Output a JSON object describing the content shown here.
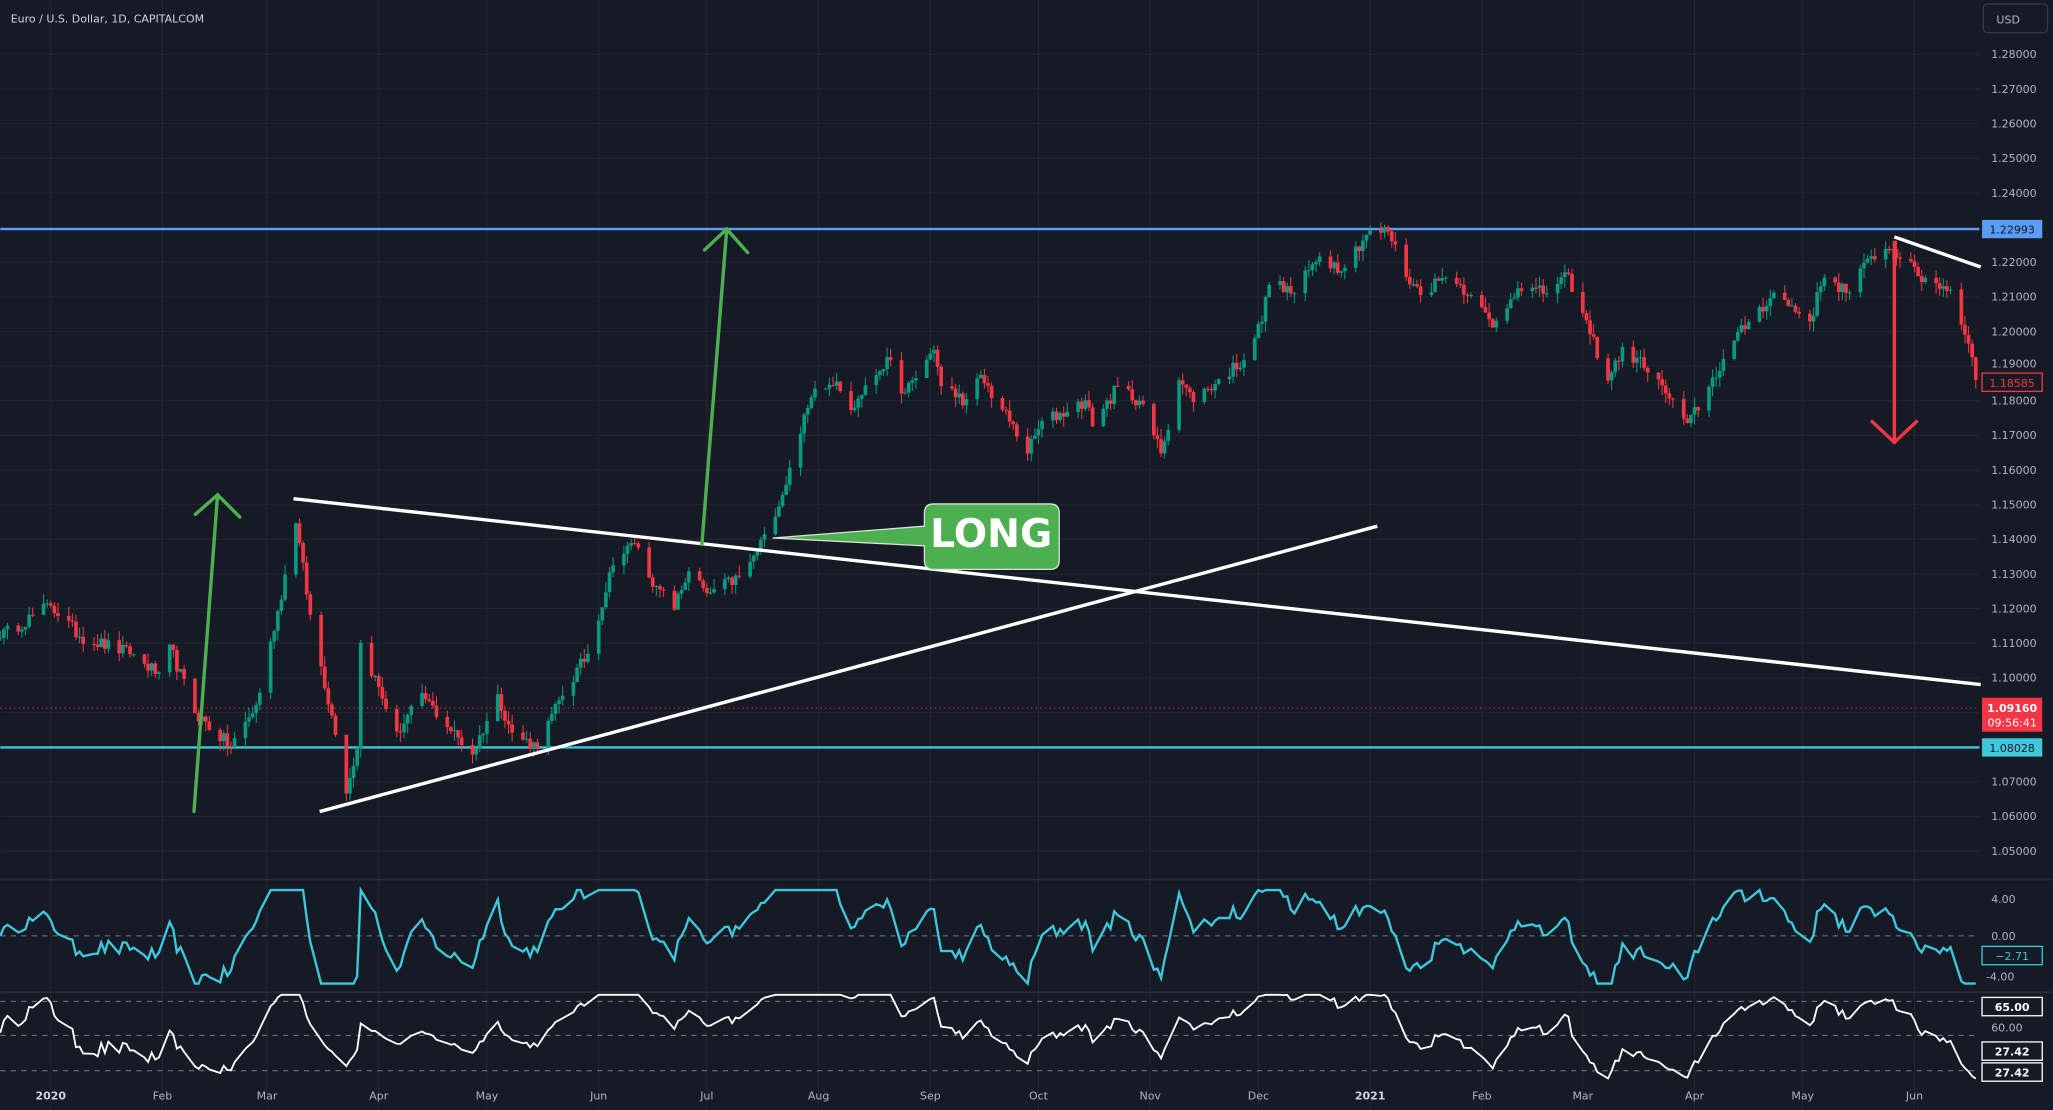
{
  "header": {
    "title": "Euro / U.S. Dollar, 1D, CAPITALCOM",
    "currency_button": "USD"
  },
  "colors": {
    "background": "#161a25",
    "grid": "#222631",
    "up": "#089981",
    "down": "#f23645",
    "resistance": "#5b9cf6",
    "support": "#3ec8dc",
    "trendline": "#ffffff",
    "arrow_up": "#4caf50",
    "arrow_down": "#f23645",
    "callout": "#4caf50",
    "oscillator1": "#3ec8dc",
    "oscillator2": "#ffffff"
  },
  "price_axis": {
    "ticks": [
      "1.28000",
      "1.27000",
      "1.26000",
      "1.25000",
      "1.24000",
      "1.22000",
      "1.21000",
      "1.20000",
      "1.19000",
      "1.18000",
      "1.17000",
      "1.16000",
      "1.15000",
      "1.14000",
      "1.13000",
      "1.12000",
      "1.11000",
      "1.10000",
      "1.07000",
      "1.06000",
      "1.05000"
    ],
    "tags": {
      "resistance": "1.22993",
      "last_close": "1.18585",
      "current_price": "1.09160",
      "countdown": "09:56:41",
      "support": "1.08028"
    }
  },
  "time_axis": {
    "labels": [
      "2020",
      "Feb",
      "Mar",
      "Apr",
      "May",
      "Jun",
      "Jul",
      "Aug",
      "Sep",
      "Oct",
      "Nov",
      "Dec",
      "2021",
      "Feb",
      "Mar",
      "Apr",
      "May",
      "Jun"
    ]
  },
  "annotations": {
    "callout_label": "LONG"
  },
  "indicator1": {
    "ticks": [
      "4.00",
      "0.00",
      "-4.00"
    ],
    "value": "−2.71"
  },
  "indicator2": {
    "ticks": [
      "65.00",
      "60.00"
    ],
    "values": [
      "27.42",
      "27.42"
    ]
  },
  "chart_data": {
    "type": "candlestick",
    "title": "Euro / U.S. Dollar, 1D, CAPITALCOM",
    "ylim": [
      1.045,
      1.285
    ],
    "xlim": [
      "2019-12-18",
      "2021-06-18"
    ],
    "grid": true,
    "horizontal_levels": [
      1.22993,
      1.08028,
      1.0916
    ],
    "approx_closes": [
      [
        "2019-12-18",
        1.112
      ],
      [
        "2020-01-01",
        1.121
      ],
      [
        "2020-01-09",
        1.112
      ],
      [
        "2020-01-23",
        1.107
      ],
      [
        "2020-01-31",
        1.101
      ],
      [
        "2020-02-03",
        1.109
      ],
      [
        "2020-02-10",
        1.09
      ],
      [
        "2020-02-20",
        1.08
      ],
      [
        "2020-02-27",
        1.092
      ],
      [
        "2020-03-03",
        1.114
      ],
      [
        "2020-03-09",
        1.145
      ],
      [
        "2020-03-13",
        1.118
      ],
      [
        "2020-03-20",
        1.084
      ],
      [
        "2020-03-23",
        1.067
      ],
      [
        "2020-03-26",
        1.08
      ],
      [
        "2020-03-27",
        1.11
      ],
      [
        "2020-04-06",
        1.084
      ],
      [
        "2020-04-13",
        1.095
      ],
      [
        "2020-04-20",
        1.086
      ],
      [
        "2020-04-27",
        1.078
      ],
      [
        "2020-05-04",
        1.095
      ],
      [
        "2020-05-08",
        1.084
      ],
      [
        "2020-05-15",
        1.08
      ],
      [
        "2020-05-22",
        1.095
      ],
      [
        "2020-05-29",
        1.107
      ],
      [
        "2020-06-05",
        1.133
      ],
      [
        "2020-06-11",
        1.139
      ],
      [
        "2020-06-17",
        1.126
      ],
      [
        "2020-06-22",
        1.12
      ],
      [
        "2020-06-26",
        1.131
      ],
      [
        "2020-07-01",
        1.124
      ],
      [
        "2020-07-10",
        1.129
      ],
      [
        "2020-07-14",
        1.135
      ],
      [
        "2020-07-17",
        1.141
      ],
      [
        "2020-07-23",
        1.156
      ],
      [
        "2020-07-27",
        1.171
      ],
      [
        "2020-07-31",
        1.184
      ],
      [
        "2020-08-06",
        1.186
      ],
      [
        "2020-08-10",
        1.177
      ],
      [
        "2020-08-14",
        1.184
      ],
      [
        "2020-08-20",
        1.192
      ],
      [
        "2020-08-25",
        1.182
      ],
      [
        "2020-09-02",
        1.195
      ],
      [
        "2020-09-04",
        1.184
      ],
      [
        "2020-09-11",
        1.18
      ],
      [
        "2020-09-15",
        1.187
      ],
      [
        "2020-09-23",
        1.174
      ],
      [
        "2020-09-28",
        1.165
      ],
      [
        "2020-10-02",
        1.174
      ],
      [
        "2020-10-09",
        1.177
      ],
      [
        "2020-10-14",
        1.18
      ],
      [
        "2020-10-16",
        1.173
      ],
      [
        "2020-10-23",
        1.184
      ],
      [
        "2020-10-29",
        1.18
      ],
      [
        "2020-11-04",
        1.165
      ],
      [
        "2020-11-09",
        1.186
      ],
      [
        "2020-11-13",
        1.18
      ],
      [
        "2020-11-20",
        1.186
      ],
      [
        "2020-11-27",
        1.192
      ],
      [
        "2020-12-02",
        1.203
      ],
      [
        "2020-12-04",
        1.214
      ],
      [
        "2020-12-11",
        1.211
      ],
      [
        "2020-12-18",
        1.222
      ],
      [
        "2020-12-24",
        1.218
      ],
      [
        "2020-12-31",
        1.228
      ],
      [
        "2021-01-06",
        1.229
      ],
      [
        "2021-01-11",
        1.216
      ],
      [
        "2021-01-15",
        1.211
      ],
      [
        "2021-01-22",
        1.216
      ],
      [
        "2021-01-29",
        1.211
      ],
      [
        "2021-02-04",
        1.201
      ],
      [
        "2021-02-11",
        1.213
      ],
      [
        "2021-02-18",
        1.211
      ],
      [
        "2021-02-25",
        1.216
      ],
      [
        "2021-03-01",
        1.205
      ],
      [
        "2021-03-08",
        1.186
      ],
      [
        "2021-03-12",
        1.195
      ],
      [
        "2021-03-18",
        1.19
      ],
      [
        "2021-03-23",
        1.184
      ],
      [
        "2021-03-30",
        1.173
      ],
      [
        "2021-04-05",
        1.184
      ],
      [
        "2021-04-09",
        1.192
      ],
      [
        "2021-04-16",
        1.203
      ],
      [
        "2021-04-23",
        1.211
      ],
      [
        "2021-05-03",
        1.203
      ],
      [
        "2021-05-07",
        1.216
      ],
      [
        "2021-05-14",
        1.211
      ],
      [
        "2021-05-20",
        1.222
      ],
      [
        "2021-05-26",
        1.224
      ],
      [
        "2021-06-02",
        1.216
      ],
      [
        "2021-06-07",
        1.214
      ],
      [
        "2021-06-11",
        1.212
      ],
      [
        "2021-06-16",
        1.197
      ],
      [
        "2021-06-18",
        1.186
      ]
    ]
  }
}
